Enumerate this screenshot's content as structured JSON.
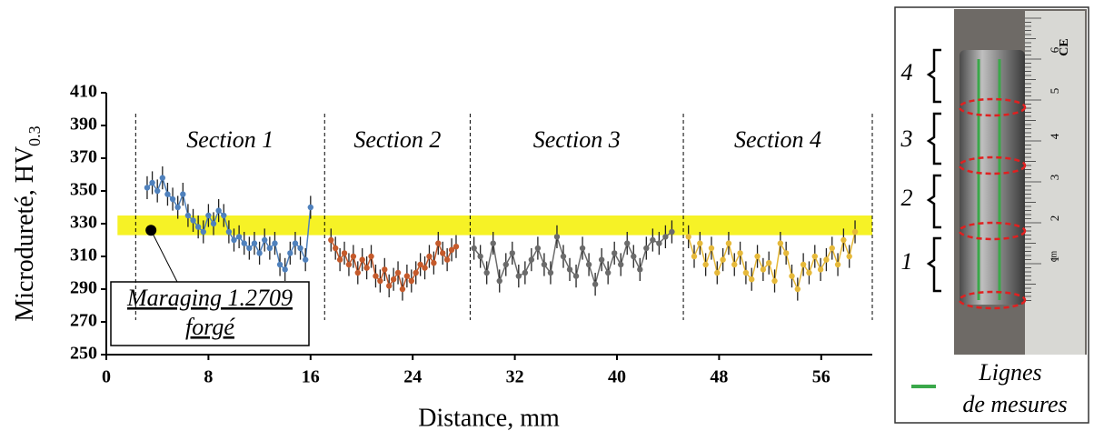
{
  "chart_data": {
    "type": "line-errorbar",
    "x_label": "Distance, mm",
    "y_label": "Microdureté, HV",
    "y_label_subscript": "0.3",
    "xlim": [
      0,
      60
    ],
    "xticks": [
      0,
      8,
      16,
      24,
      32,
      40,
      48,
      56
    ],
    "ylim": [
      250,
      410
    ],
    "yticks": [
      250,
      270,
      290,
      310,
      330,
      350,
      370,
      390,
      410
    ],
    "section_boundaries": [
      2.3,
      17.1,
      28.5,
      45.2,
      60
    ],
    "sections": [
      "Section 1",
      "Section 2",
      "Section 3",
      "Section 4"
    ],
    "reference_band": [
      323,
      335
    ],
    "reference_band_color": "#f5f000",
    "reference_point": {
      "x": 3.5,
      "y": 326
    },
    "annotation": [
      "Maraging 1.2709",
      "forgé"
    ],
    "series": [
      {
        "name": "Section 1",
        "color": "#4f81bd",
        "error": 7,
        "x": [
          3.2,
          3.6,
          4.0,
          4.4,
          4.8,
          5.2,
          5.6,
          6.0,
          6.4,
          6.8,
          7.2,
          7.6,
          8.0,
          8.4,
          8.8,
          9.2,
          9.6,
          10.0,
          10.4,
          10.8,
          11.2,
          11.6,
          12.0,
          12.4,
          12.8,
          13.2,
          13.6,
          14.0,
          14.4,
          14.8,
          15.2,
          15.6,
          16.0
        ],
        "values": [
          352,
          355,
          350,
          358,
          348,
          345,
          340,
          348,
          335,
          332,
          328,
          325,
          335,
          330,
          338,
          335,
          325,
          320,
          322,
          318,
          315,
          318,
          312,
          320,
          315,
          318,
          305,
          302,
          312,
          318,
          315,
          308,
          340
        ]
      },
      {
        "name": "Section 2",
        "color": "#c55a2b",
        "error": 7,
        "x": [
          17.6,
          17.95,
          18.3,
          18.65,
          19.0,
          19.35,
          19.7,
          20.05,
          20.4,
          20.75,
          21.1,
          21.45,
          21.8,
          22.15,
          22.5,
          22.85,
          23.2,
          23.55,
          23.9,
          24.25,
          24.6,
          24.95,
          25.3,
          25.65,
          26.0,
          26.35,
          26.7,
          27.05,
          27.4
        ],
        "values": [
          320,
          315,
          308,
          312,
          305,
          310,
          300,
          308,
          303,
          310,
          298,
          295,
          302,
          292,
          296,
          300,
          290,
          298,
          295,
          300,
          305,
          303,
          310,
          306,
          318,
          312,
          308,
          314,
          316
        ]
      },
      {
        "name": "Section 3",
        "color": "#6b6b6b",
        "error": 7,
        "x": [
          28.8,
          29.3,
          29.8,
          30.3,
          30.8,
          31.3,
          31.8,
          32.3,
          32.8,
          33.3,
          33.8,
          34.3,
          34.8,
          35.3,
          35.8,
          36.3,
          36.8,
          37.3,
          37.8,
          38.3,
          38.8,
          39.3,
          39.8,
          40.3,
          40.8,
          41.3,
          41.8,
          42.3,
          42.8,
          43.3,
          43.8,
          44.3
        ],
        "values": [
          315,
          310,
          300,
          318,
          295,
          305,
          312,
          298,
          300,
          308,
          315,
          305,
          300,
          322,
          310,
          302,
          298,
          315,
          305,
          293,
          308,
          300,
          312,
          305,
          318,
          310,
          302,
          315,
          320,
          318,
          322,
          325
        ]
      },
      {
        "name": "Section 4",
        "color": "#e6b93a",
        "error": 7,
        "x": [
          45.6,
          46.05,
          46.5,
          46.95,
          47.4,
          47.85,
          48.3,
          48.75,
          49.2,
          49.65,
          50.1,
          50.55,
          51.0,
          51.45,
          51.9,
          52.35,
          52.8,
          53.25,
          53.7,
          54.15,
          54.6,
          55.05,
          55.5,
          55.95,
          56.4,
          56.85,
          57.3,
          57.75,
          58.2,
          58.65
        ],
        "values": [
          322,
          310,
          318,
          305,
          315,
          300,
          308,
          318,
          305,
          312,
          300,
          296,
          310,
          302,
          306,
          295,
          318,
          312,
          298,
          290,
          305,
          300,
          310,
          302,
          308,
          315,
          305,
          320,
          310,
          325
        ]
      }
    ]
  },
  "photo": {
    "section_labels": [
      "4",
      "3",
      "2",
      "1"
    ],
    "ruler_labels": [
      "6",
      "5",
      "4",
      "3",
      "2",
      "1"
    ],
    "ruler_unit": "cm",
    "ruler_mark": "CE",
    "legend": [
      "Lignes",
      "de mesures"
    ],
    "legend_color": "#3aa84a"
  }
}
